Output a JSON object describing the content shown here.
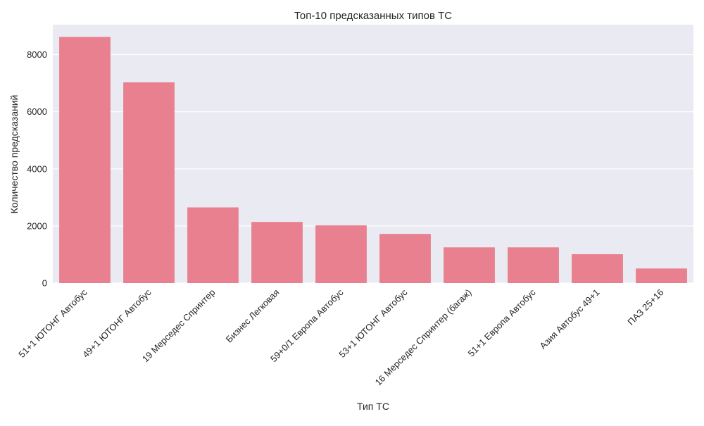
{
  "chart_data": {
    "type": "bar",
    "title": "Топ-10 предсказанных типов ТС",
    "xlabel": "Тип ТС",
    "ylabel": "Количество предсказаний",
    "categories": [
      "51+1 ЮТОНГ Автобус",
      "49+1 ЮТОНГ Автобус",
      "19 Мерседес Спринтер",
      "Бизнес Легковая",
      "59+0/1 Европа Автобус",
      "53+1 ЮТОНГ Автобус",
      "16 Мерседес Спринтер (багаж)",
      "51+1 Европа Автобус",
      "Азия Автобус 49+1",
      "ПАЗ 25+16"
    ],
    "values": [
      8620,
      7030,
      2650,
      2140,
      2020,
      1720,
      1250,
      1250,
      1010,
      510
    ],
    "ylim": [
      0,
      9050
    ],
    "yticks": [
      0,
      2000,
      4000,
      6000,
      8000
    ],
    "grid": true,
    "bar_color": "#e8808f",
    "background_color": "#eaeaf2",
    "grid_color": "#ffffff"
  }
}
